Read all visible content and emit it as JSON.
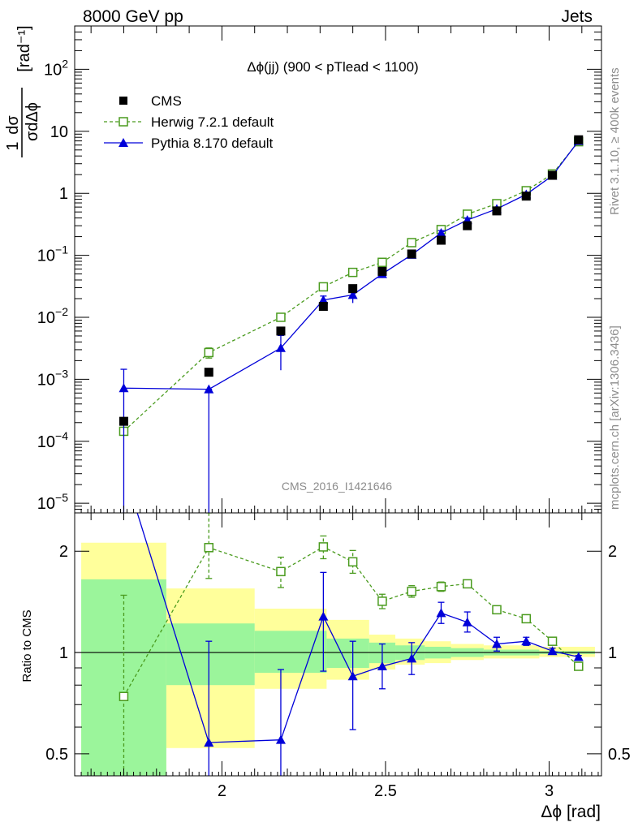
{
  "header": {
    "left_label": "8000 GeV pp",
    "right_label": "Jets"
  },
  "side_labels": {
    "rivet": "Rivet 3.1.10, ≥ 400k events",
    "mcplots": "mcplots.cern.ch [arXiv:1306.3436]"
  },
  "chart_data": [
    {
      "type": "scatter",
      "panel": "main",
      "title": "Δϕ(jj) (900 < pTlead < 1100)",
      "watermark": "CMS_2016_I1421646",
      "xlabel": "Δϕ [rad]",
      "ylabel": "1 dσ / σ dΔϕ [rad⁻¹]",
      "xlim": [
        1.55,
        3.16
      ],
      "ylim": [
        7e-06,
        500
      ],
      "yscale": "log",
      "ytick_labels": [
        "10⁻⁵",
        "10⁻⁴",
        "10⁻³",
        "10⁻²",
        "10⁻¹",
        "1",
        "10",
        "10²"
      ],
      "legend_position": "top-left",
      "series": [
        {
          "name": "CMS",
          "style": "black-square-marker",
          "color": "#000000",
          "points": [
            {
              "x": 1.7,
              "y": 0.00021
            },
            {
              "x": 1.96,
              "y": 0.0013
            },
            {
              "x": 2.18,
              "y": 0.006
            },
            {
              "x": 2.31,
              "y": 0.015
            },
            {
              "x": 2.4,
              "y": 0.029
            },
            {
              "x": 2.49,
              "y": 0.055
            },
            {
              "x": 2.58,
              "y": 0.105
            },
            {
              "x": 2.67,
              "y": 0.175
            },
            {
              "x": 2.75,
              "y": 0.3
            },
            {
              "x": 2.84,
              "y": 0.52
            },
            {
              "x": 2.93,
              "y": 0.9
            },
            {
              "x": 3.01,
              "y": 1.95
            },
            {
              "x": 3.09,
              "y": 7.3
            }
          ]
        },
        {
          "name": "Herwig 7.2.1 default",
          "style": "green-dashed-open-square",
          "color": "#4a9b1e",
          "points": [
            {
              "x": 1.7,
              "y": 0.000145
            },
            {
              "x": 1.96,
              "y": 0.0027,
              "err": 0.0005
            },
            {
              "x": 2.18,
              "y": 0.01
            },
            {
              "x": 2.31,
              "y": 0.031
            },
            {
              "x": 2.4,
              "y": 0.053
            },
            {
              "x": 2.49,
              "y": 0.077
            },
            {
              "x": 2.58,
              "y": 0.16
            },
            {
              "x": 2.67,
              "y": 0.26
            },
            {
              "x": 2.75,
              "y": 0.46
            },
            {
              "x": 2.84,
              "y": 0.68
            },
            {
              "x": 2.93,
              "y": 1.1
            },
            {
              "x": 3.01,
              "y": 2.05
            },
            {
              "x": 3.09,
              "y": 6.8
            }
          ]
        },
        {
          "name": "Pythia 8.170 default",
          "style": "blue-solid-triangle",
          "color": "#0000d9",
          "points": [
            {
              "x": 1.7,
              "y": 0.00072,
              "lo": 7e-06,
              "hi": 0.00145
            },
            {
              "x": 1.96,
              "y": 0.00069,
              "lo": 7e-06,
              "hi": 0.00069
            },
            {
              "x": 2.18,
              "y": 0.0032,
              "lo": 0.0014,
              "hi": 0.0051
            },
            {
              "x": 2.31,
              "y": 0.019,
              "lo": 0.017,
              "hi": 0.022
            },
            {
              "x": 2.4,
              "y": 0.023,
              "lo": 0.017,
              "hi": 0.029
            },
            {
              "x": 2.49,
              "y": 0.05,
              "lo": 0.043,
              "hi": 0.057
            },
            {
              "x": 2.58,
              "y": 0.102,
              "lo": 0.092,
              "hi": 0.112
            },
            {
              "x": 2.67,
              "y": 0.23,
              "lo": 0.21,
              "hi": 0.25
            },
            {
              "x": 2.75,
              "y": 0.37,
              "lo": 0.34,
              "hi": 0.4
            },
            {
              "x": 2.84,
              "y": 0.56,
              "lo": 0.53,
              "hi": 0.59
            },
            {
              "x": 2.93,
              "y": 0.96,
              "lo": 0.92,
              "hi": 1.0
            },
            {
              "x": 3.01,
              "y": 1.92,
              "lo": 1.87,
              "hi": 1.97
            },
            {
              "x": 3.09,
              "y": 7.0,
              "lo": 6.9,
              "hi": 7.1
            }
          ]
        }
      ]
    },
    {
      "type": "line",
      "panel": "ratio",
      "xlabel": "Δϕ [rad]",
      "ylabel": "Ratio to CMS",
      "xlim": [
        1.55,
        3.16
      ],
      "ylim": [
        0.43,
        2.6
      ],
      "yscale": "log",
      "xtick_labels": [
        "2",
        "2.5",
        "3"
      ],
      "ytick_labels": [
        "0.5",
        "1",
        "2"
      ],
      "reference_line": 1,
      "uncertainty_bands": {
        "bins": [
          {
            "x0": 1.57,
            "x1": 1.83,
            "stat_lo": 0.4,
            "stat_hi": 1.65,
            "tot_lo": 0.4,
            "tot_hi": 2.12
          },
          {
            "x0": 1.83,
            "x1": 2.1,
            "stat_lo": 0.8,
            "stat_hi": 1.22,
            "tot_lo": 0.52,
            "tot_hi": 1.55
          },
          {
            "x0": 2.1,
            "x1": 2.32,
            "stat_lo": 0.87,
            "stat_hi": 1.16,
            "tot_lo": 0.78,
            "tot_hi": 1.35
          },
          {
            "x0": 2.32,
            "x1": 2.45,
            "stat_lo": 0.9,
            "stat_hi": 1.1,
            "tot_lo": 0.83,
            "tot_hi": 1.25
          },
          {
            "x0": 2.45,
            "x1": 2.53,
            "stat_lo": 0.93,
            "stat_hi": 1.07,
            "tot_lo": 0.89,
            "tot_hi": 1.13
          },
          {
            "x0": 2.53,
            "x1": 2.62,
            "stat_lo": 0.95,
            "stat_hi": 1.05,
            "tot_lo": 0.92,
            "tot_hi": 1.1
          },
          {
            "x0": 2.62,
            "x1": 2.7,
            "stat_lo": 0.96,
            "stat_hi": 1.04,
            "tot_lo": 0.93,
            "tot_hi": 1.08
          },
          {
            "x0": 2.7,
            "x1": 2.8,
            "stat_lo": 0.97,
            "stat_hi": 1.03,
            "tot_lo": 0.95,
            "tot_hi": 1.06
          },
          {
            "x0": 2.8,
            "x1": 2.97,
            "stat_lo": 0.98,
            "stat_hi": 1.02,
            "tot_lo": 0.96,
            "tot_hi": 1.05
          },
          {
            "x0": 2.97,
            "x1": 3.14,
            "stat_lo": 0.99,
            "stat_hi": 1.01,
            "tot_lo": 0.97,
            "tot_hi": 1.04
          }
        ]
      },
      "series": [
        {
          "name": "Herwig 7.2.1 default",
          "color": "#4a9b1e",
          "points": [
            {
              "x": 1.7,
              "y": 0.74,
              "lo": 0.4,
              "hi": 1.48
            },
            {
              "x": 1.96,
              "y": 2.05,
              "lo": 1.66,
              "hi": 2.6
            },
            {
              "x": 2.18,
              "y": 1.74,
              "lo": 1.56,
              "hi": 1.92
            },
            {
              "x": 2.31,
              "y": 2.06,
              "lo": 1.9,
              "hi": 2.22
            },
            {
              "x": 2.4,
              "y": 1.86,
              "lo": 1.72,
              "hi": 2.01
            },
            {
              "x": 2.49,
              "y": 1.42,
              "lo": 1.35,
              "hi": 1.49
            },
            {
              "x": 2.58,
              "y": 1.52,
              "lo": 1.46,
              "hi": 1.58
            },
            {
              "x": 2.67,
              "y": 1.57,
              "lo": 1.52,
              "hi": 1.62
            },
            {
              "x": 2.75,
              "y": 1.6,
              "lo": 1.56,
              "hi": 1.64
            },
            {
              "x": 2.84,
              "y": 1.34,
              "lo": 1.31,
              "hi": 1.37
            },
            {
              "x": 2.93,
              "y": 1.26,
              "lo": 1.24,
              "hi": 1.28
            },
            {
              "x": 3.01,
              "y": 1.08,
              "lo": 1.07,
              "hi": 1.09
            },
            {
              "x": 3.09,
              "y": 0.91,
              "lo": 0.905,
              "hi": 0.915
            }
          ]
        },
        {
          "name": "Pythia 8.170 default",
          "color": "#0000d9",
          "points": [
            {
              "x": 1.7,
              "y": 3.5
            },
            {
              "x": 1.96,
              "y": 0.54,
              "lo": 0.4,
              "hi": 1.08
            },
            {
              "x": 2.18,
              "y": 0.55,
              "lo": 0.4,
              "hi": 0.89
            },
            {
              "x": 2.31,
              "y": 1.28,
              "lo": 0.88,
              "hi": 1.73
            },
            {
              "x": 2.4,
              "y": 0.85,
              "lo": 0.59,
              "hi": 1.08
            },
            {
              "x": 2.49,
              "y": 0.91,
              "lo": 0.78,
              "hi": 1.06
            },
            {
              "x": 2.58,
              "y": 0.96,
              "lo": 0.86,
              "hi": 1.07
            },
            {
              "x": 2.67,
              "y": 1.31,
              "lo": 1.22,
              "hi": 1.41
            },
            {
              "x": 2.75,
              "y": 1.23,
              "lo": 1.15,
              "hi": 1.32
            },
            {
              "x": 2.84,
              "y": 1.06,
              "lo": 1.01,
              "hi": 1.11
            },
            {
              "x": 2.93,
              "y": 1.08,
              "lo": 1.05,
              "hi": 1.11
            },
            {
              "x": 3.01,
              "y": 1.01,
              "lo": 0.99,
              "hi": 1.03
            },
            {
              "x": 3.09,
              "y": 0.97,
              "lo": 0.96,
              "hi": 0.98
            }
          ]
        }
      ]
    }
  ],
  "colors": {
    "stat_band": "#9bf59b",
    "total_band": "#ffff9b",
    "herwig": "#4a9b1e",
    "pythia": "#0000d9",
    "data": "#000000"
  }
}
